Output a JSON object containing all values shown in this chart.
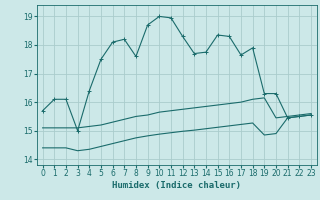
{
  "xlabel": "Humidex (Indice chaleur)",
  "ylabel": "",
  "xlim": [
    -0.5,
    23.5
  ],
  "ylim": [
    13.8,
    19.4
  ],
  "bg_color": "#cce8e8",
  "grid_color": "#aacccc",
  "line_color": "#1a6b6b",
  "line1": {
    "x": [
      0,
      1,
      2,
      3,
      4,
      5,
      6,
      7,
      8,
      9,
      10,
      11,
      12,
      13,
      14,
      15,
      16,
      17,
      18,
      19,
      20,
      21,
      22,
      23
    ],
    "y": [
      15.7,
      16.1,
      16.1,
      15.0,
      16.4,
      17.5,
      18.1,
      18.2,
      17.6,
      18.7,
      19.0,
      18.95,
      18.3,
      17.7,
      17.75,
      18.35,
      18.3,
      17.65,
      17.9,
      16.3,
      16.3,
      15.45,
      15.5,
      15.55
    ]
  },
  "line2": {
    "x": [
      0,
      1,
      2,
      3,
      4,
      5,
      6,
      7,
      8,
      9,
      10,
      11,
      12,
      13,
      14,
      15,
      16,
      17,
      18,
      19,
      20,
      21,
      22,
      23
    ],
    "y": [
      15.1,
      15.1,
      15.1,
      15.1,
      15.15,
      15.2,
      15.3,
      15.4,
      15.5,
      15.55,
      15.65,
      15.7,
      15.75,
      15.8,
      15.85,
      15.9,
      15.95,
      16.0,
      16.1,
      16.15,
      15.45,
      15.5,
      15.55,
      15.6
    ]
  },
  "line3": {
    "x": [
      0,
      1,
      2,
      3,
      4,
      5,
      6,
      7,
      8,
      9,
      10,
      11,
      12,
      13,
      14,
      15,
      16,
      17,
      18,
      19,
      20,
      21,
      22,
      23
    ],
    "y": [
      14.4,
      14.4,
      14.4,
      14.3,
      14.35,
      14.45,
      14.55,
      14.65,
      14.75,
      14.82,
      14.88,
      14.93,
      14.98,
      15.02,
      15.07,
      15.12,
      15.17,
      15.22,
      15.27,
      14.85,
      14.9,
      15.45,
      15.5,
      15.55
    ]
  },
  "yticks": [
    14,
    15,
    16,
    17,
    18,
    19
  ],
  "xticks": [
    0,
    1,
    2,
    3,
    4,
    5,
    6,
    7,
    8,
    9,
    10,
    11,
    12,
    13,
    14,
    15,
    16,
    17,
    18,
    19,
    20,
    21,
    22,
    23
  ]
}
